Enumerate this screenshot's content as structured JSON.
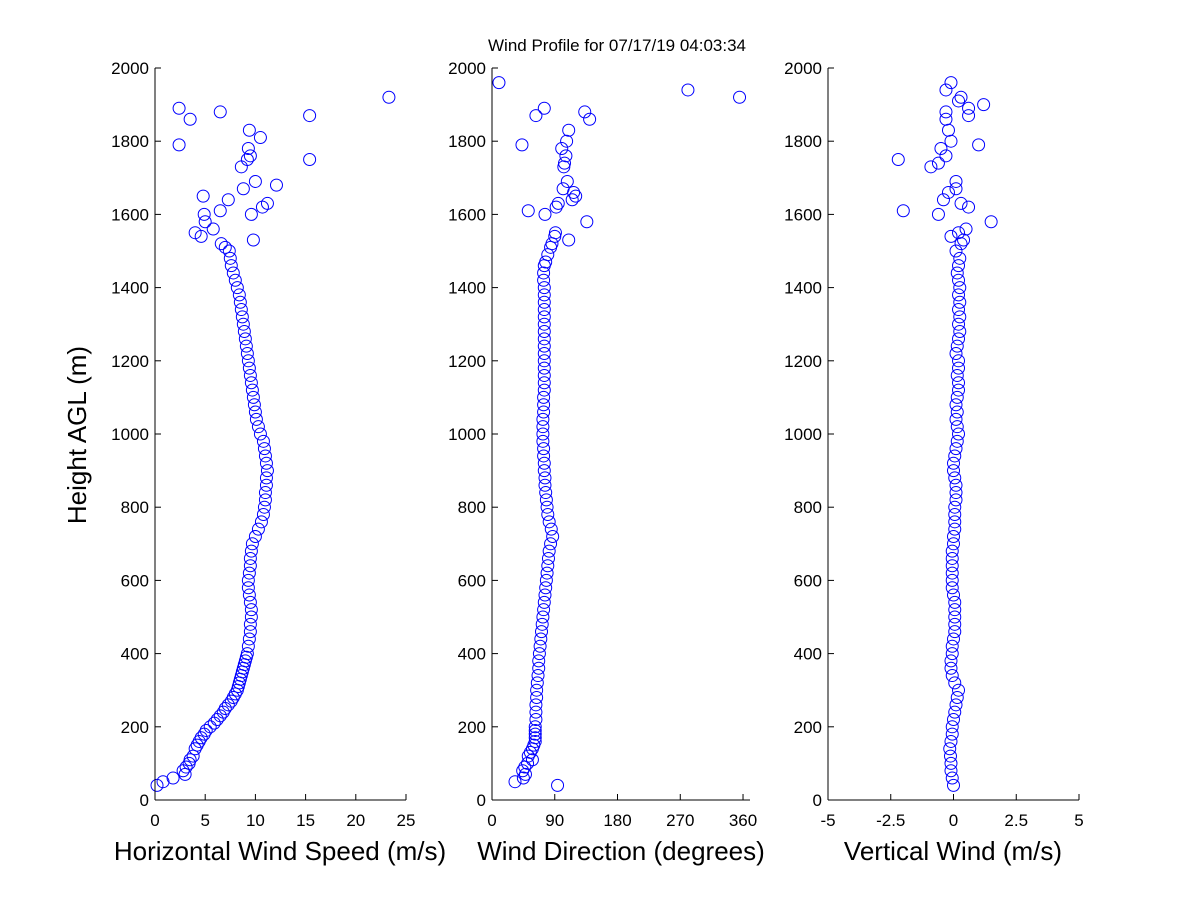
{
  "title": "Wind Profile for  07/17/19 04:03:34",
  "colors": {
    "marker": "#0000ff",
    "axis": "#000000",
    "background": "#ffffff"
  },
  "chart_data": [
    {
      "type": "scatter",
      "xlabel": "Horizontal Wind Speed (m/s)",
      "ylabel": "Height AGL (m)",
      "xlim": [
        0,
        25
      ],
      "ylim": [
        0,
        2000
      ],
      "xticks": [
        "0",
        "5",
        "10",
        "15",
        "20",
        "25"
      ],
      "xtick_values": [
        0,
        5,
        10,
        15,
        20,
        25
      ],
      "yticks": [
        "0",
        "200",
        "400",
        "600",
        "800",
        "1000",
        "1200",
        "1400",
        "1600",
        "1800",
        "2000"
      ],
      "ytick_values": [
        0,
        200,
        400,
        600,
        800,
        1000,
        1200,
        1400,
        1600,
        1800,
        2000
      ],
      "grid": false,
      "marker": "open-circle",
      "points": [
        [
          0.2,
          40
        ],
        [
          0.8,
          50
        ],
        [
          1.8,
          60
        ],
        [
          3.0,
          70
        ],
        [
          2.8,
          80
        ],
        [
          3.1,
          90
        ],
        [
          3.4,
          100
        ],
        [
          3.5,
          110
        ],
        [
          3.8,
          120
        ],
        [
          4.0,
          140
        ],
        [
          4.2,
          150
        ],
        [
          4.4,
          160
        ],
        [
          4.6,
          170
        ],
        [
          4.9,
          180
        ],
        [
          5.1,
          190
        ],
        [
          5.5,
          200
        ],
        [
          5.9,
          210
        ],
        [
          6.2,
          220
        ],
        [
          6.5,
          230
        ],
        [
          6.8,
          240
        ],
        [
          7.0,
          250
        ],
        [
          7.3,
          260
        ],
        [
          7.6,
          270
        ],
        [
          7.8,
          280
        ],
        [
          8.0,
          290
        ],
        [
          8.2,
          300
        ],
        [
          8.3,
          310
        ],
        [
          8.4,
          320
        ],
        [
          8.5,
          330
        ],
        [
          8.6,
          340
        ],
        [
          8.7,
          350
        ],
        [
          8.8,
          360
        ],
        [
          8.9,
          370
        ],
        [
          9.0,
          380
        ],
        [
          9.1,
          390
        ],
        [
          9.2,
          400
        ],
        [
          9.3,
          420
        ],
        [
          9.4,
          440
        ],
        [
          9.5,
          460
        ],
        [
          9.5,
          480
        ],
        [
          9.6,
          500
        ],
        [
          9.6,
          520
        ],
        [
          9.5,
          540
        ],
        [
          9.4,
          560
        ],
        [
          9.3,
          580
        ],
        [
          9.3,
          600
        ],
        [
          9.4,
          620
        ],
        [
          9.5,
          640
        ],
        [
          9.5,
          660
        ],
        [
          9.6,
          680
        ],
        [
          9.7,
          700
        ],
        [
          10.0,
          720
        ],
        [
          10.3,
          740
        ],
        [
          10.6,
          760
        ],
        [
          10.8,
          780
        ],
        [
          10.9,
          800
        ],
        [
          11.0,
          820
        ],
        [
          11.0,
          840
        ],
        [
          11.1,
          860
        ],
        [
          11.1,
          880
        ],
        [
          11.2,
          900
        ],
        [
          11.1,
          920
        ],
        [
          11.0,
          940
        ],
        [
          10.9,
          960
        ],
        [
          10.8,
          980
        ],
        [
          10.5,
          1000
        ],
        [
          10.3,
          1020
        ],
        [
          10.1,
          1040
        ],
        [
          10.0,
          1060
        ],
        [
          9.9,
          1080
        ],
        [
          9.8,
          1100
        ],
        [
          9.7,
          1120
        ],
        [
          9.6,
          1140
        ],
        [
          9.5,
          1160
        ],
        [
          9.4,
          1180
        ],
        [
          9.3,
          1200
        ],
        [
          9.2,
          1220
        ],
        [
          9.1,
          1240
        ],
        [
          9.0,
          1260
        ],
        [
          8.9,
          1280
        ],
        [
          8.8,
          1300
        ],
        [
          8.7,
          1320
        ],
        [
          8.6,
          1340
        ],
        [
          8.5,
          1360
        ],
        [
          8.4,
          1380
        ],
        [
          8.2,
          1400
        ],
        [
          8.0,
          1420
        ],
        [
          7.8,
          1440
        ],
        [
          7.6,
          1460
        ],
        [
          7.5,
          1480
        ],
        [
          7.4,
          1500
        ],
        [
          7.0,
          1510
        ],
        [
          6.6,
          1520
        ],
        [
          5.8,
          1560
        ],
        [
          4.0,
          1550
        ],
        [
          4.6,
          1540
        ],
        [
          4.9,
          1600
        ],
        [
          5.0,
          1580
        ],
        [
          4.8,
          1650
        ],
        [
          6.5,
          1610
        ],
        [
          7.3,
          1640
        ],
        [
          9.6,
          1600
        ],
        [
          10.0,
          1690
        ],
        [
          8.8,
          1670
        ],
        [
          10.7,
          1620
        ],
        [
          11.2,
          1630
        ],
        [
          12.1,
          1680
        ],
        [
          9.8,
          1530
        ],
        [
          8.6,
          1730
        ],
        [
          9.2,
          1750
        ],
        [
          9.5,
          1760
        ],
        [
          9.3,
          1780
        ],
        [
          10.5,
          1810
        ],
        [
          9.4,
          1830
        ],
        [
          15.4,
          1750
        ],
        [
          15.4,
          1870
        ],
        [
          2.4,
          1790
        ],
        [
          2.4,
          1890
        ],
        [
          3.5,
          1860
        ],
        [
          6.5,
          1880
        ],
        [
          23.3,
          1920
        ]
      ]
    },
    {
      "type": "scatter",
      "xlabel": "Wind Direction (degrees)",
      "ylabel": "",
      "xlim": [
        0,
        370
      ],
      "ylim": [
        0,
        2000
      ],
      "xticks": [
        "0",
        "90",
        "180",
        "270",
        "360"
      ],
      "xtick_values": [
        0,
        90,
        180,
        270,
        360
      ],
      "yticks": [
        "0",
        "200",
        "400",
        "600",
        "800",
        "1000",
        "1200",
        "1400",
        "1600",
        "1800",
        "2000"
      ],
      "ytick_values": [
        0,
        200,
        400,
        600,
        800,
        1000,
        1200,
        1400,
        1600,
        1800,
        2000
      ],
      "grid": false,
      "marker": "open-circle",
      "points": [
        [
          33,
          50
        ],
        [
          45,
          60
        ],
        [
          48,
          70
        ],
        [
          44,
          80
        ],
        [
          47,
          90
        ],
        [
          51,
          100
        ],
        [
          58,
          110
        ],
        [
          52,
          120
        ],
        [
          55,
          130
        ],
        [
          58,
          140
        ],
        [
          60,
          150
        ],
        [
          62,
          160
        ],
        [
          62,
          170
        ],
        [
          62,
          180
        ],
        [
          62,
          190
        ],
        [
          62,
          200
        ],
        [
          63,
          220
        ],
        [
          63,
          240
        ],
        [
          63,
          260
        ],
        [
          64,
          280
        ],
        [
          64,
          300
        ],
        [
          65,
          320
        ],
        [
          66,
          340
        ],
        [
          67,
          360
        ],
        [
          67,
          380
        ],
        [
          68,
          400
        ],
        [
          69,
          420
        ],
        [
          70,
          440
        ],
        [
          71,
          460
        ],
        [
          72,
          480
        ],
        [
          73,
          500
        ],
        [
          74,
          520
        ],
        [
          75,
          540
        ],
        [
          76,
          560
        ],
        [
          77,
          580
        ],
        [
          78,
          600
        ],
        [
          79,
          620
        ],
        [
          80,
          640
        ],
        [
          81,
          660
        ],
        [
          82,
          680
        ],
        [
          84,
          700
        ],
        [
          87,
          720
        ],
        [
          85,
          740
        ],
        [
          82,
          760
        ],
        [
          80,
          780
        ],
        [
          79,
          800
        ],
        [
          78,
          820
        ],
        [
          77,
          840
        ],
        [
          76,
          860
        ],
        [
          76,
          880
        ],
        [
          75,
          900
        ],
        [
          75,
          920
        ],
        [
          74,
          940
        ],
        [
          74,
          960
        ],
        [
          73,
          980
        ],
        [
          73,
          1000
        ],
        [
          73,
          1020
        ],
        [
          73,
          1040
        ],
        [
          74,
          1060
        ],
        [
          74,
          1080
        ],
        [
          74,
          1100
        ],
        [
          75,
          1120
        ],
        [
          75,
          1140
        ],
        [
          75,
          1160
        ],
        [
          75,
          1180
        ],
        [
          75,
          1200
        ],
        [
          75,
          1220
        ],
        [
          75,
          1240
        ],
        [
          75,
          1260
        ],
        [
          75,
          1280
        ],
        [
          75,
          1300
        ],
        [
          75,
          1320
        ],
        [
          75,
          1340
        ],
        [
          75,
          1360
        ],
        [
          75,
          1380
        ],
        [
          75,
          1400
        ],
        [
          74,
          1420
        ],
        [
          74,
          1440
        ],
        [
          75,
          1460
        ],
        [
          77,
          1470
        ],
        [
          80,
          1490
        ],
        [
          84,
          1510
        ],
        [
          86,
          1520
        ],
        [
          90,
          1540
        ],
        [
          91,
          1550
        ],
        [
          110,
          1530
        ],
        [
          136,
          1580
        ],
        [
          95,
          1630
        ],
        [
          92,
          1620
        ],
        [
          76,
          1600
        ],
        [
          52,
          1610
        ],
        [
          102,
          1670
        ],
        [
          108,
          1690
        ],
        [
          117,
          1660
        ],
        [
          120,
          1650
        ],
        [
          115,
          1640
        ],
        [
          103,
          1730
        ],
        [
          104,
          1740
        ],
        [
          106,
          1760
        ],
        [
          100,
          1780
        ],
        [
          107,
          1800
        ],
        [
          110,
          1830
        ],
        [
          43,
          1790
        ],
        [
          63,
          1870
        ],
        [
          75,
          1890
        ],
        [
          133,
          1880
        ],
        [
          140,
          1860
        ],
        [
          10,
          1960
        ],
        [
          94,
          40
        ],
        [
          281,
          1940
        ],
        [
          355,
          1920
        ]
      ]
    },
    {
      "type": "scatter",
      "xlabel": "Vertical Wind (m/s)",
      "ylabel": "",
      "xlim": [
        -5,
        5
      ],
      "ylim": [
        0,
        2000
      ],
      "xticks": [
        "-5",
        "-2.5",
        "0",
        "2.5",
        "5"
      ],
      "xtick_values": [
        -5,
        -2.5,
        0,
        2.5,
        5
      ],
      "yticks": [
        "0",
        "200",
        "400",
        "600",
        "800",
        "1000",
        "1200",
        "1400",
        "1600",
        "1800",
        "2000"
      ],
      "ytick_values": [
        0,
        200,
        400,
        600,
        800,
        1000,
        1200,
        1400,
        1600,
        1800,
        2000
      ],
      "grid": false,
      "marker": "open-circle",
      "points": [
        [
          0,
          40
        ],
        [
          -0.05,
          60
        ],
        [
          -0.1,
          80
        ],
        [
          -0.1,
          100
        ],
        [
          -0.12,
          120
        ],
        [
          -0.15,
          140
        ],
        [
          -0.1,
          160
        ],
        [
          -0.05,
          180
        ],
        [
          -0.05,
          200
        ],
        [
          0,
          220
        ],
        [
          0.05,
          240
        ],
        [
          0.1,
          260
        ],
        [
          0.15,
          280
        ],
        [
          0.2,
          300
        ],
        [
          0.05,
          320
        ],
        [
          -0.05,
          340
        ],
        [
          -0.1,
          360
        ],
        [
          -0.1,
          380
        ],
        [
          -0.05,
          400
        ],
        [
          -0.05,
          420
        ],
        [
          0,
          440
        ],
        [
          0.05,
          460
        ],
        [
          0.05,
          480
        ],
        [
          0.05,
          500
        ],
        [
          0.05,
          520
        ],
        [
          0.05,
          540
        ],
        [
          0,
          560
        ],
        [
          -0.05,
          580
        ],
        [
          -0.05,
          600
        ],
        [
          -0.05,
          620
        ],
        [
          -0.05,
          640
        ],
        [
          -0.05,
          660
        ],
        [
          -0.05,
          680
        ],
        [
          0,
          700
        ],
        [
          0,
          720
        ],
        [
          0.05,
          740
        ],
        [
          0.05,
          760
        ],
        [
          0.05,
          780
        ],
        [
          0.05,
          800
        ],
        [
          0.1,
          820
        ],
        [
          0.1,
          840
        ],
        [
          0.1,
          860
        ],
        [
          0.05,
          880
        ],
        [
          0,
          900
        ],
        [
          0,
          920
        ],
        [
          0.05,
          940
        ],
        [
          0.1,
          960
        ],
        [
          0.15,
          980
        ],
        [
          0.2,
          1000
        ],
        [
          0.15,
          1020
        ],
        [
          0.1,
          1040
        ],
        [
          0.15,
          1060
        ],
        [
          0.1,
          1080
        ],
        [
          0.15,
          1100
        ],
        [
          0.2,
          1120
        ],
        [
          0.2,
          1140
        ],
        [
          0.15,
          1160
        ],
        [
          0.2,
          1180
        ],
        [
          0.2,
          1200
        ],
        [
          0.1,
          1220
        ],
        [
          0.15,
          1240
        ],
        [
          0.2,
          1260
        ],
        [
          0.25,
          1280
        ],
        [
          0.2,
          1300
        ],
        [
          0.25,
          1320
        ],
        [
          0.2,
          1340
        ],
        [
          0.25,
          1360
        ],
        [
          0.2,
          1380
        ],
        [
          0.25,
          1400
        ],
        [
          0.2,
          1420
        ],
        [
          0.15,
          1440
        ],
        [
          0.2,
          1460
        ],
        [
          0.25,
          1480
        ],
        [
          0.1,
          1500
        ],
        [
          0.3,
          1520
        ],
        [
          0.4,
          1530
        ],
        [
          0.5,
          1560
        ],
        [
          0.2,
          1550
        ],
        [
          -0.1,
          1540
        ],
        [
          -2.2,
          1750
        ],
        [
          -2.0,
          1610
        ],
        [
          -0.6,
          1600
        ],
        [
          -0.4,
          1640
        ],
        [
          -0.2,
          1660
        ],
        [
          0.1,
          1670
        ],
        [
          0.1,
          1690
        ],
        [
          0.3,
          1630
        ],
        [
          0.6,
          1620
        ],
        [
          1.5,
          1580
        ],
        [
          -0.9,
          1730
        ],
        [
          -0.6,
          1740
        ],
        [
          -0.5,
          1780
        ],
        [
          -0.3,
          1760
        ],
        [
          -0.2,
          1830
        ],
        [
          -0.1,
          1800
        ],
        [
          -0.3,
          1860
        ],
        [
          -0.3,
          1880
        ],
        [
          0.2,
          1910
        ],
        [
          0.3,
          1920
        ],
        [
          0.6,
          1870
        ],
        [
          0.6,
          1890
        ],
        [
          1.2,
          1900
        ],
        [
          1.0,
          1790
        ],
        [
          -0.3,
          1940
        ],
        [
          -0.1,
          1960
        ]
      ]
    }
  ]
}
